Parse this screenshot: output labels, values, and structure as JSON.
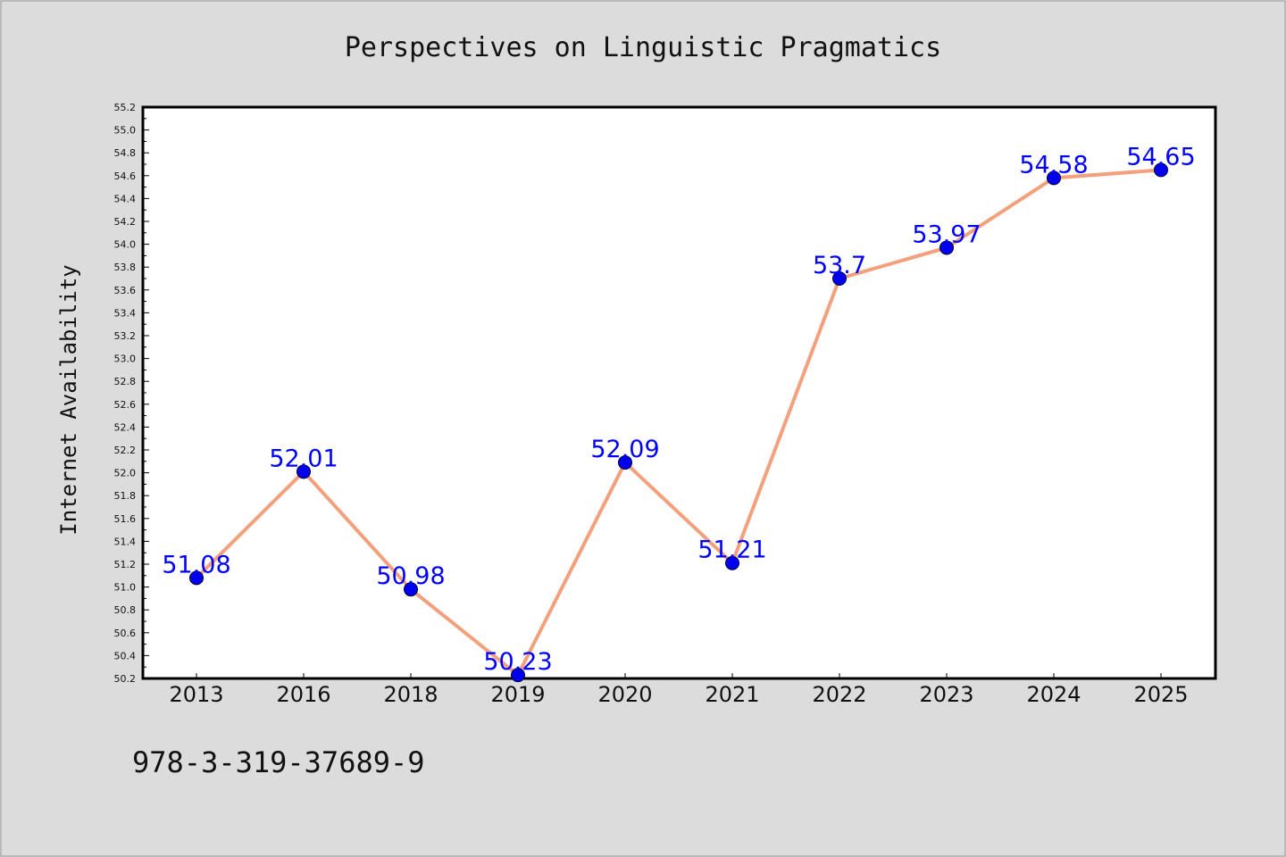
{
  "chart_data": {
    "type": "line",
    "title": "Perspectives on Linguistic Pragmatics",
    "xlabel": "",
    "ylabel": "Internet Availability",
    "categories": [
      "2013",
      "2016",
      "2018",
      "2019",
      "2020",
      "2021",
      "2022",
      "2023",
      "2024",
      "2025"
    ],
    "values": [
      51.08,
      52.01,
      50.98,
      50.23,
      52.09,
      51.21,
      53.7,
      53.97,
      54.58,
      54.65
    ],
    "data_labels": [
      "51.08",
      "52.01",
      "50.98",
      "50.23",
      "52.09",
      "51.21",
      "53.7",
      "53.97",
      "54.58",
      "54.65"
    ],
    "ylim": [
      50.2,
      55.2
    ],
    "yticks": [
      "50.2",
      "50.4",
      "50.6",
      "50.8",
      "51.0",
      "51.2",
      "51.4",
      "51.6",
      "51.8",
      "52.0",
      "52.2",
      "52.4",
      "52.6",
      "52.8",
      "53.0",
      "53.2",
      "53.4",
      "53.6",
      "53.8",
      "54.0",
      "54.2",
      "54.4",
      "54.6",
      "54.8",
      "55.0",
      "55.2"
    ],
    "grid": false,
    "legend": "none",
    "line_color": "#f4a07c",
    "marker_color": "#0000ee",
    "label_color": "#0000ff"
  },
  "footer": {
    "isbn": "978-3-319-37689-9"
  }
}
